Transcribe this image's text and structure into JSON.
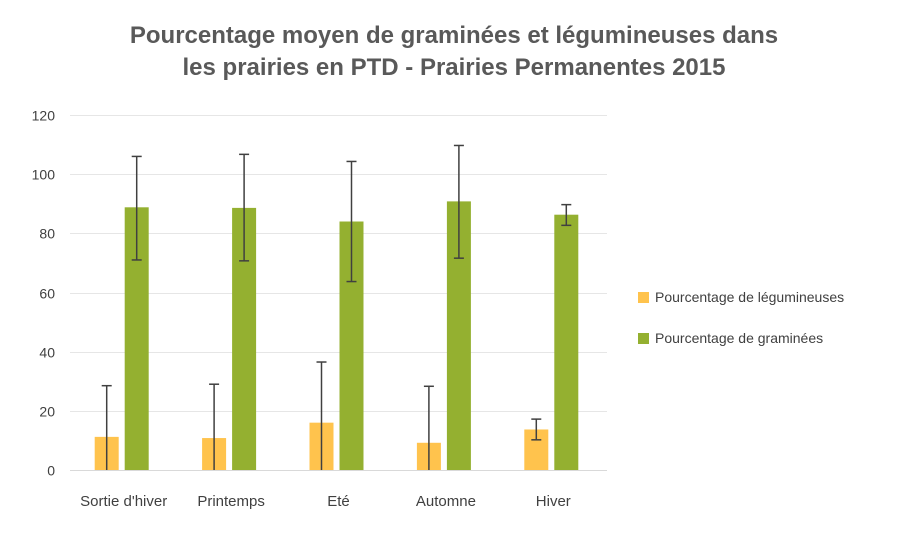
{
  "chart_data": {
    "type": "bar",
    "title_lines": [
      "Pourcentage moyen de graminées et légumineuses dans",
      "les prairies en PTD - Prairies Permanentes 2015"
    ],
    "categories": [
      "Sortie d'hiver",
      "Printemps",
      "Eté",
      "Automne",
      "Hiver"
    ],
    "series": [
      {
        "name": "Pourcentage de légumineuses",
        "color": "#FFC34D",
        "values": [
          11.2,
          10.8,
          16.0,
          9.2,
          13.7
        ],
        "error_low": [
          0,
          0,
          0,
          0,
          10.2
        ],
        "error_high": [
          28.5,
          29.0,
          36.5,
          28.3,
          17.2
        ]
      },
      {
        "name": "Pourcentage de graminées",
        "color": "#94B030",
        "values": [
          88.8,
          88.6,
          84.0,
          90.8,
          86.3
        ],
        "error_low": [
          71.0,
          70.7,
          63.7,
          71.6,
          82.7
        ],
        "error_high": [
          106.0,
          106.7,
          104.3,
          109.7,
          89.7
        ]
      }
    ],
    "yticks": [
      0,
      20,
      40,
      60,
      80,
      100,
      120
    ],
    "ylim": [
      0,
      120
    ],
    "grid": true,
    "legend_position": "right"
  }
}
